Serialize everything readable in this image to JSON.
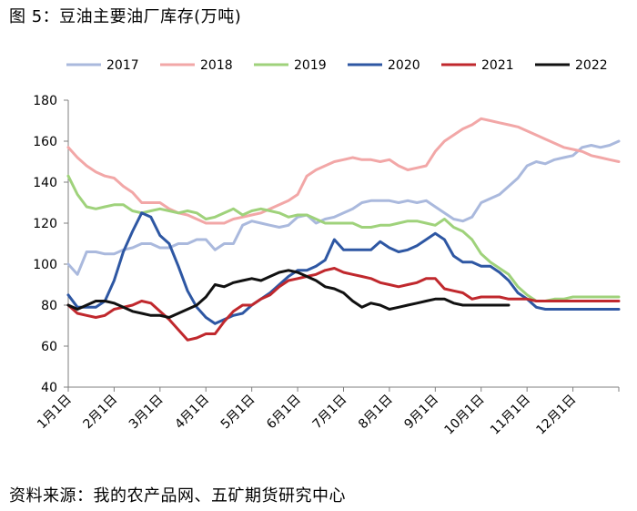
{
  "title": "图 5：豆油主要油厂库存(万吨)",
  "source": "资料来源：我的农产品网、五矿期货研究中心",
  "chart_data": {
    "type": "line",
    "ylim": [
      40,
      180
    ],
    "yticks": [
      40,
      60,
      80,
      100,
      120,
      140,
      160,
      180
    ],
    "xlim": [
      0,
      12
    ],
    "categories": [
      "1月1日",
      "2月1日",
      "3月1日",
      "4月1日",
      "5月1日",
      "6月1日",
      "7月1日",
      "8月1日",
      "9月1日",
      "10月1日",
      "11月1日",
      "12月1日"
    ],
    "legend_position": "top",
    "grid": false,
    "series": [
      {
        "name": "2017",
        "color": "#aab9dd",
        "x": [
          0.0,
          0.2,
          0.4,
          0.6,
          0.8,
          1.0,
          1.2,
          1.4,
          1.6,
          1.8,
          2.0,
          2.2,
          2.4,
          2.6,
          2.8,
          3.0,
          3.2,
          3.4,
          3.6,
          3.8,
          4.0,
          4.2,
          4.4,
          4.6,
          4.8,
          5.0,
          5.2,
          5.4,
          5.6,
          5.8,
          6.0,
          6.2,
          6.4,
          6.6,
          6.8,
          7.0,
          7.2,
          7.4,
          7.6,
          7.8,
          8.0,
          8.2,
          8.4,
          8.6,
          8.8,
          9.0,
          9.2,
          9.4,
          9.6,
          9.8,
          10.0,
          10.2,
          10.4,
          10.6,
          10.8,
          11.0,
          11.2,
          11.4,
          11.6,
          11.8,
          12.0
        ],
        "y": [
          100,
          95,
          106,
          106,
          105,
          105,
          107,
          108,
          110,
          110,
          108,
          108,
          110,
          110,
          112,
          112,
          107,
          110,
          110,
          119,
          121,
          120,
          119,
          118,
          119,
          123,
          124,
          120,
          122,
          123,
          125,
          127,
          130,
          131,
          131,
          131,
          130,
          131,
          130,
          131,
          128,
          125,
          122,
          121,
          123,
          130,
          132,
          134,
          138,
          142,
          148,
          150,
          149,
          151,
          152,
          153,
          157,
          158,
          157,
          158,
          160
        ]
      },
      {
        "name": "2018",
        "color": "#f2a7a7",
        "x": [
          0.0,
          0.2,
          0.4,
          0.6,
          0.8,
          1.0,
          1.2,
          1.4,
          1.6,
          1.8,
          2.0,
          2.2,
          2.4,
          2.6,
          2.8,
          3.0,
          3.2,
          3.4,
          3.6,
          3.8,
          4.0,
          4.2,
          4.4,
          4.6,
          4.8,
          5.0,
          5.2,
          5.4,
          5.6,
          5.8,
          6.0,
          6.2,
          6.4,
          6.6,
          6.8,
          7.0,
          7.2,
          7.4,
          7.6,
          7.8,
          8.0,
          8.2,
          8.4,
          8.6,
          8.8,
          9.0,
          9.2,
          9.4,
          9.6,
          9.8,
          10.0,
          10.2,
          10.4,
          10.6,
          10.8,
          11.0,
          11.2,
          11.4,
          11.6,
          11.8,
          12.0
        ],
        "y": [
          157,
          152,
          148,
          145,
          143,
          142,
          138,
          135,
          130,
          130,
          130,
          127,
          125,
          124,
          122,
          120,
          120,
          120,
          122,
          123,
          124,
          125,
          127,
          129,
          131,
          134,
          143,
          146,
          148,
          150,
          151,
          152,
          151,
          151,
          150,
          151,
          148,
          146,
          147,
          148,
          155,
          160,
          163,
          166,
          168,
          171,
          170,
          169,
          168,
          167,
          165,
          163,
          161,
          159,
          157,
          156,
          155,
          153,
          152,
          151,
          150
        ]
      },
      {
        "name": "2019",
        "color": "#9fd27b",
        "x": [
          0.0,
          0.2,
          0.4,
          0.6,
          0.8,
          1.0,
          1.2,
          1.4,
          1.6,
          1.8,
          2.0,
          2.2,
          2.4,
          2.6,
          2.8,
          3.0,
          3.2,
          3.4,
          3.6,
          3.8,
          4.0,
          4.2,
          4.4,
          4.6,
          4.8,
          5.0,
          5.2,
          5.4,
          5.6,
          5.8,
          6.0,
          6.2,
          6.4,
          6.6,
          6.8,
          7.0,
          7.2,
          7.4,
          7.6,
          7.8,
          8.0,
          8.2,
          8.4,
          8.6,
          8.8,
          9.0,
          9.2,
          9.4,
          9.6,
          9.8,
          10.0,
          10.2,
          10.4,
          10.6,
          10.8,
          11.0,
          11.2,
          11.4,
          11.6,
          11.8,
          12.0
        ],
        "y": [
          143,
          134,
          128,
          127,
          128,
          129,
          129,
          126,
          125,
          126,
          127,
          126,
          125,
          126,
          125,
          122,
          123,
          125,
          127,
          124,
          126,
          127,
          126,
          125,
          123,
          124,
          124,
          122,
          120,
          120,
          120,
          120,
          118,
          118,
          119,
          119,
          120,
          121,
          121,
          120,
          119,
          122,
          118,
          116,
          112,
          105,
          101,
          98,
          95,
          89,
          85,
          82,
          82,
          83,
          83,
          84,
          84,
          84,
          84,
          84,
          84
        ]
      },
      {
        "name": "2020",
        "color": "#2e57a3",
        "x": [
          0.0,
          0.2,
          0.4,
          0.6,
          0.8,
          1.0,
          1.2,
          1.4,
          1.6,
          1.8,
          2.0,
          2.2,
          2.4,
          2.6,
          2.8,
          3.0,
          3.2,
          3.4,
          3.6,
          3.8,
          4.0,
          4.2,
          4.4,
          4.6,
          4.8,
          5.0,
          5.2,
          5.4,
          5.6,
          5.8,
          6.0,
          6.2,
          6.4,
          6.6,
          6.8,
          7.0,
          7.2,
          7.4,
          7.6,
          7.8,
          8.0,
          8.2,
          8.4,
          8.6,
          8.8,
          9.0,
          9.2,
          9.4,
          9.6,
          9.8,
          10.0,
          10.2,
          10.4,
          10.6,
          10.8,
          11.0,
          11.2,
          11.4,
          11.6,
          11.8,
          12.0
        ],
        "y": [
          85,
          79,
          79,
          79,
          82,
          92,
          106,
          116,
          125,
          123,
          114,
          110,
          99,
          87,
          79,
          74,
          71,
          73,
          75,
          76,
          80,
          83,
          86,
          90,
          94,
          97,
          97,
          99,
          102,
          112,
          107,
          107,
          107,
          107,
          111,
          108,
          106,
          107,
          109,
          112,
          115,
          112,
          104,
          101,
          101,
          99,
          99,
          96,
          92,
          86,
          83,
          79,
          78,
          78,
          78,
          78,
          78,
          78,
          78,
          78,
          78
        ]
      },
      {
        "name": "2021",
        "color": "#c0282d",
        "x": [
          0.0,
          0.2,
          0.4,
          0.6,
          0.8,
          1.0,
          1.2,
          1.4,
          1.6,
          1.8,
          2.0,
          2.2,
          2.4,
          2.6,
          2.8,
          3.0,
          3.2,
          3.4,
          3.6,
          3.8,
          4.0,
          4.2,
          4.4,
          4.6,
          4.8,
          5.0,
          5.2,
          5.4,
          5.6,
          5.8,
          6.0,
          6.2,
          6.4,
          6.6,
          6.8,
          7.0,
          7.2,
          7.4,
          7.6,
          7.8,
          8.0,
          8.2,
          8.4,
          8.6,
          8.8,
          9.0,
          9.2,
          9.4,
          9.6,
          9.8,
          10.0,
          10.2,
          10.4,
          10.6,
          10.8,
          11.0,
          11.2,
          11.4,
          11.6,
          11.8,
          12.0
        ],
        "y": [
          80,
          76,
          75,
          74,
          75,
          78,
          79,
          80,
          82,
          81,
          77,
          73,
          68,
          63,
          64,
          66,
          66,
          72,
          77,
          80,
          80,
          83,
          85,
          89,
          92,
          93,
          94,
          95,
          97,
          98,
          96,
          95,
          94,
          93,
          91,
          90,
          89,
          90,
          91,
          93,
          93,
          88,
          87,
          86,
          83,
          84,
          84,
          84,
          83,
          83,
          83,
          82,
          82,
          82,
          82,
          82,
          82,
          82,
          82,
          82,
          82
        ]
      },
      {
        "name": "2022",
        "color": "#111111",
        "x": [
          0.0,
          0.2,
          0.4,
          0.6,
          0.8,
          1.0,
          1.2,
          1.4,
          1.6,
          1.8,
          2.0,
          2.2,
          2.4,
          2.6,
          2.8,
          3.0,
          3.2,
          3.4,
          3.6,
          3.8,
          4.0,
          4.2,
          4.4,
          4.6,
          4.8,
          5.0,
          5.2,
          5.4,
          5.6,
          5.8,
          6.0,
          6.2,
          6.4,
          6.6,
          6.8,
          7.0,
          7.2,
          7.4,
          7.6,
          7.8,
          8.0,
          8.2,
          8.4,
          8.6,
          8.8,
          9.0,
          9.2,
          9.4,
          9.6
        ],
        "y": [
          80,
          78,
          80,
          82,
          82,
          81,
          79,
          77,
          76,
          75,
          75,
          74,
          76,
          78,
          80,
          84,
          90,
          89,
          91,
          92,
          93,
          92,
          94,
          96,
          97,
          96,
          94,
          92,
          89,
          88,
          86,
          82,
          79,
          81,
          80,
          78,
          79,
          80,
          81,
          82,
          83,
          83,
          81,
          80,
          80,
          80,
          80,
          80,
          80
        ]
      }
    ]
  }
}
